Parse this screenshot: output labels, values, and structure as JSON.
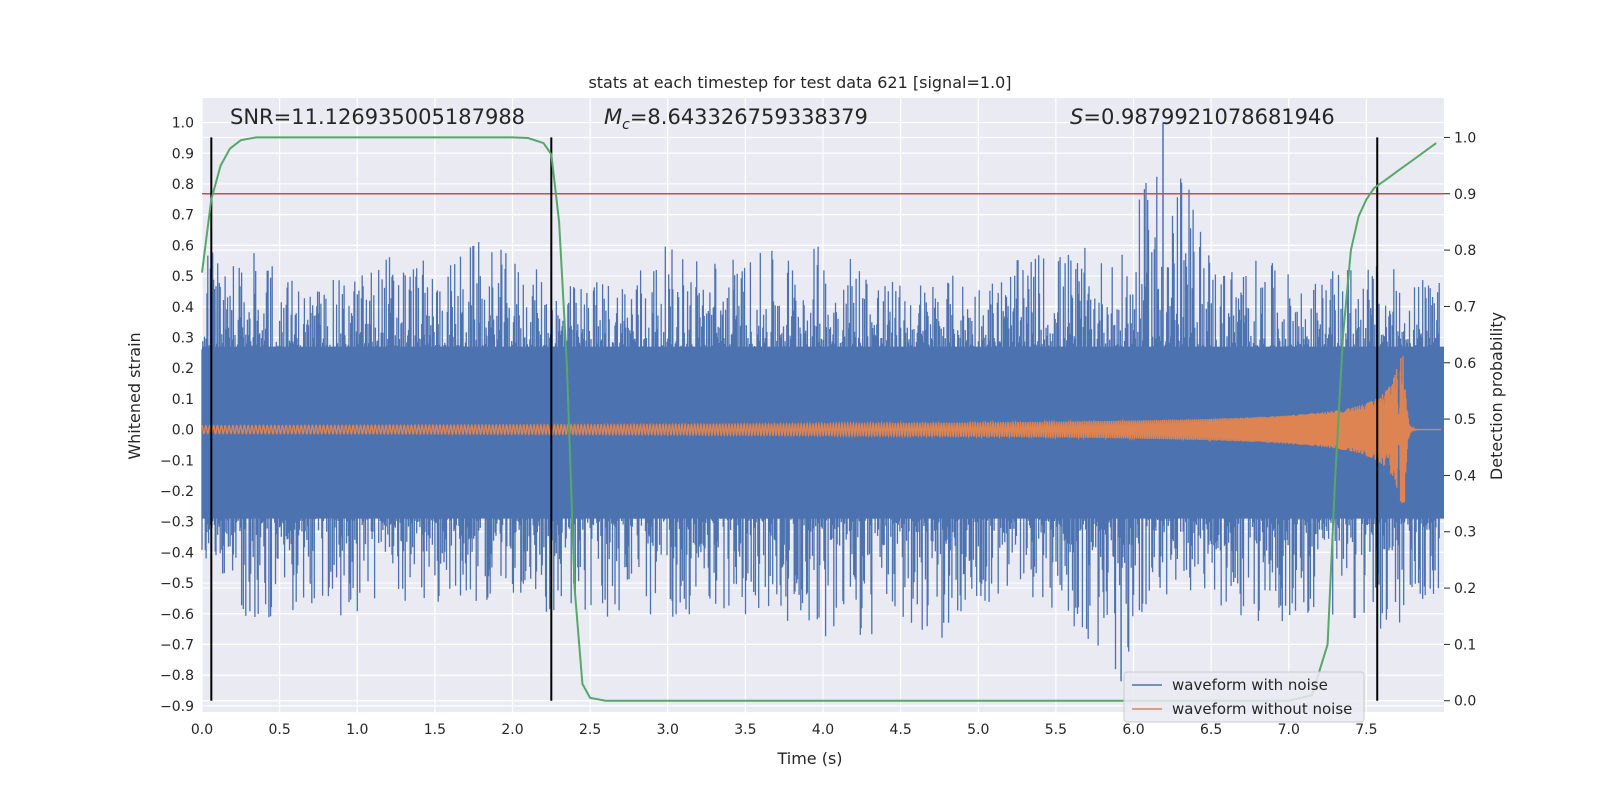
{
  "chart_data": {
    "type": "line",
    "title": "stats at each timestep for test data 621 [signal=1.0]",
    "xlabel": "Time (s)",
    "ylabel": "Whitened strain",
    "y2label": "Detection probability",
    "xlim": [
      0.0,
      8.0
    ],
    "ylim": [
      -0.92,
      1.08
    ],
    "y2lim": [
      -0.02,
      1.07
    ],
    "xticks": [
      0.0,
      0.5,
      1.0,
      1.5,
      2.0,
      2.5,
      3.0,
      3.5,
      4.0,
      4.5,
      5.0,
      5.5,
      6.0,
      6.5,
      7.0,
      7.5
    ],
    "xtick_labels": [
      "0.0",
      "0.5",
      "1.0",
      "1.5",
      "2.0",
      "2.5",
      "3.0",
      "3.5",
      "4.0",
      "4.5",
      "5.0",
      "5.5",
      "6.0",
      "6.5",
      "7.0",
      "7.5"
    ],
    "yticks": [
      1.0,
      0.9,
      0.8,
      0.7,
      0.6,
      0.5,
      0.4,
      0.3,
      0.2,
      0.1,
      0.0,
      -0.1,
      -0.2,
      -0.3,
      -0.4,
      -0.5,
      -0.6,
      -0.7,
      -0.8,
      -0.9
    ],
    "ytick_labels": [
      "1.0",
      "0.9",
      "0.8",
      "0.7",
      "0.6",
      "0.5",
      "0.4",
      "0.3",
      "0.2",
      "0.1",
      "0.0",
      "−0.1",
      "−0.2",
      "−0.3",
      "−0.4",
      "−0.5",
      "−0.6",
      "−0.7",
      "−0.8",
      "−0.9"
    ],
    "y2ticks": [
      1.0,
      0.9,
      0.8,
      0.7,
      0.6,
      0.5,
      0.4,
      0.3,
      0.2,
      0.1,
      0.0
    ],
    "y2tick_labels": [
      "1.0",
      "0.9",
      "0.8",
      "0.7",
      "0.6",
      "0.5",
      "0.4",
      "0.3",
      "0.2",
      "0.1",
      "0.0"
    ],
    "grid": true,
    "annotations": {
      "snr": "SNR=11.126935005187988",
      "mc_symbol": "M",
      "mc_subscript": "c",
      "mc_value": "=8.643326759338379",
      "s_symbol": "S",
      "s_value": "=0.9879921078681946"
    },
    "threshold": {
      "value": 0.9,
      "axis": "y2",
      "color": "#c44e52"
    },
    "vertical_markers": [
      0.06,
      2.25,
      7.57
    ],
    "noise_envelope": {
      "t": [
        0.0,
        0.3,
        0.66,
        0.95,
        1.24,
        1.53,
        1.75,
        2.02,
        2.32,
        2.67,
        2.97,
        3.28,
        3.55,
        3.87,
        4.19,
        4.47,
        4.77,
        5.05,
        5.39,
        5.63,
        5.92,
        6.19,
        6.55,
        6.83,
        7.14,
        7.45,
        7.72,
        8.0
      ],
      "max": [
        0.57,
        0.61,
        0.47,
        0.5,
        0.6,
        0.53,
        0.62,
        0.57,
        0.47,
        0.51,
        0.6,
        0.58,
        0.57,
        0.61,
        0.6,
        0.48,
        0.51,
        0.5,
        0.59,
        0.6,
        0.56,
        1.0,
        0.55,
        0.56,
        0.48,
        0.56,
        0.52,
        0.48
      ],
      "min": [
        -0.41,
        -0.62,
        -0.6,
        -0.63,
        -0.55,
        -0.59,
        -0.56,
        -0.55,
        -0.62,
        -0.63,
        -0.62,
        -0.6,
        -0.61,
        -0.63,
        -0.73,
        -0.66,
        -0.68,
        -0.59,
        -0.55,
        -0.68,
        -0.82,
        -0.54,
        -0.6,
        -0.64,
        -0.61,
        -0.63,
        -0.68,
        -0.55
      ]
    },
    "series": [
      {
        "name": "waveform with noise",
        "color": "#4c72b0",
        "axis": "y"
      },
      {
        "name": "waveform without noise",
        "color": "#dd8452",
        "axis": "y"
      },
      {
        "name": "detection probability",
        "color": "#55a868",
        "axis": "y2",
        "x": [
          0.0,
          0.06,
          0.12,
          0.18,
          0.25,
          0.35,
          0.5,
          1.0,
          1.5,
          2.0,
          2.1,
          2.2,
          2.25,
          2.3,
          2.35,
          2.4,
          2.45,
          2.5,
          2.6,
          3.0,
          4.0,
          5.0,
          6.0,
          7.0,
          7.15,
          7.25,
          7.3,
          7.35,
          7.4,
          7.45,
          7.5,
          7.55,
          7.6,
          7.65,
          7.7,
          7.8,
          7.9,
          7.95
        ],
        "values": [
          0.76,
          0.89,
          0.95,
          0.98,
          0.995,
          1.0,
          1.0,
          1.0,
          1.0,
          1.0,
          0.999,
          0.99,
          0.97,
          0.85,
          0.6,
          0.2,
          0.03,
          0.005,
          0.0,
          0.0,
          0.0,
          0.0,
          0.0,
          0.0,
          0.01,
          0.1,
          0.4,
          0.65,
          0.8,
          0.86,
          0.89,
          0.91,
          0.92,
          0.93,
          0.94,
          0.96,
          0.98,
          0.99
        ]
      }
    ],
    "legend": {
      "location": "lower-right",
      "entries": [
        "waveform with noise",
        "waveform without noise"
      ]
    }
  }
}
